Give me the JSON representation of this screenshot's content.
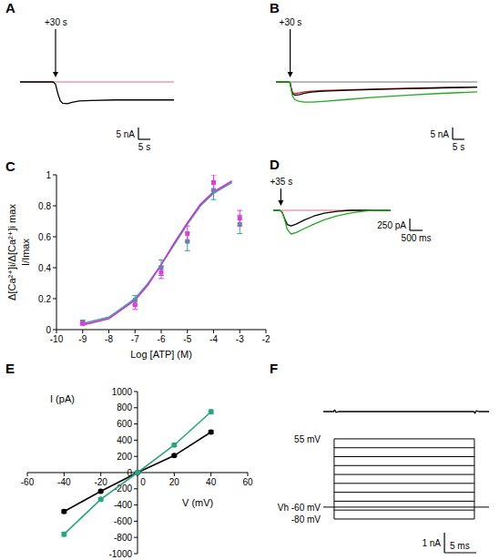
{
  "chart_data": [
    {
      "type": "trace",
      "title": "A",
      "series": [
        {
          "color": "#f29aa8",
          "x": [
            0,
            65
          ],
          "values": [
            0,
            0
          ]
        },
        {
          "color": "#000000",
          "x": [
            0,
            14,
            15,
            16,
            17,
            18,
            20,
            22,
            25,
            30,
            40,
            50,
            65
          ],
          "values": [
            0,
            0,
            -1,
            -5,
            -8,
            -9,
            -9.2,
            -8.6,
            -8,
            -7.8,
            -7.6,
            -7.6,
            -7.6
          ]
        }
      ],
      "scale_bar": {
        "x": 5,
        "x_label": "5 s",
        "y": 5,
        "y_label": "5 nA"
      },
      "annotations": [
        {
          "x": 15,
          "text": "+30 s"
        }
      ]
    },
    {
      "type": "trace",
      "title": "B",
      "series": [
        {
          "color": "#a0a0a0",
          "x": [
            0,
            85
          ],
          "values": [
            0,
            0
          ]
        },
        {
          "color": "#e02020",
          "x": [
            0,
            5.5,
            6,
            6.5,
            7,
            8,
            10,
            12,
            15,
            20,
            30,
            40,
            55,
            70,
            85
          ],
          "values": [
            0,
            0,
            -0.5,
            -2.8,
            -4.5,
            -4.9,
            -4.6,
            -4.2,
            -3.9,
            -3.6,
            -3.3,
            -3,
            -2.7,
            -2.4,
            -2.2
          ]
        },
        {
          "color": "#000000",
          "x": [
            0,
            5.5,
            6,
            6.5,
            7,
            8,
            10,
            12,
            15,
            20,
            30,
            40,
            55,
            70,
            85
          ],
          "values": [
            0,
            0,
            -0.5,
            -3,
            -5,
            -5.6,
            -5.3,
            -4.8,
            -4.3,
            -3.9,
            -3.5,
            -3.2,
            -2.8,
            -2.5,
            -2.2
          ]
        },
        {
          "color": "#22aa22",
          "x": [
            0,
            5.5,
            6,
            6.5,
            7,
            8,
            10,
            12,
            15,
            20,
            30,
            40,
            55,
            70,
            85
          ],
          "values": [
            0,
            0,
            -0.5,
            -3.5,
            -6,
            -7.5,
            -8.2,
            -8.5,
            -8.5,
            -8.2,
            -7.4,
            -6.6,
            -5.6,
            -4.8,
            -4.2
          ]
        }
      ],
      "scale_bar": {
        "x": 5,
        "x_label": "5 s",
        "y": 5,
        "y_label": "5 nA"
      },
      "annotations": [
        {
          "x": 6,
          "text": "+30 s"
        }
      ]
    },
    {
      "type": "scatter",
      "title": "C",
      "x_label": "Log [ATP] (M)",
      "y_label": [
        "Δ[Ca²⁺]i/Δ[Ca²⁺]i max",
        "I/Imax"
      ],
      "xlim": [
        -10,
        -2
      ],
      "xticks": [
        -10,
        -9,
        -8,
        -7,
        -6,
        -5,
        -4,
        -3,
        -2
      ],
      "ylim": [
        0,
        1
      ],
      "yticks": [
        0,
        0.2,
        0.4,
        0.6,
        0.8,
        1
      ],
      "series": [
        {
          "type": "line",
          "color": "#40a8a0",
          "line_style": "solid",
          "x": [
            -9,
            -8,
            -7,
            -6.5,
            -6,
            -5.5,
            -5,
            -4.5,
            -4,
            -3.5,
            -3.3
          ],
          "values": [
            0.04,
            0.08,
            0.2,
            0.3,
            0.42,
            0.55,
            0.68,
            0.8,
            0.88,
            0.93,
            0.95
          ]
        },
        {
          "type": "line",
          "color": "#cc33cc",
          "line_style": "solid",
          "x": [
            -9,
            -8,
            -7,
            -6.5,
            -6,
            -5.5,
            -5,
            -4.5,
            -4,
            -3.5,
            -3.3
          ],
          "values": [
            0.03,
            0.07,
            0.19,
            0.29,
            0.42,
            0.56,
            0.69,
            0.81,
            0.89,
            0.94,
            0.96
          ]
        },
        {
          "type": "scatter",
          "color": "#3d9e9a",
          "marker": "square",
          "x": [
            -9,
            -7,
            -6,
            -5,
            -4,
            -3
          ],
          "values": [
            0.05,
            0.19,
            0.4,
            0.57,
            0.9,
            0.68
          ],
          "errors": [
            0.01,
            0.03,
            0.05,
            0.06,
            0.06,
            0.06
          ]
        },
        {
          "type": "scatter",
          "color": "#e03ce0",
          "marker": "square",
          "x": [
            -9,
            -7,
            -6,
            -5,
            -4,
            -3
          ],
          "values": [
            0.04,
            0.16,
            0.37,
            0.62,
            0.95,
            0.72
          ],
          "errors": [
            0.01,
            0.03,
            0.04,
            0.05,
            0.05,
            0.05
          ]
        }
      ]
    },
    {
      "type": "trace",
      "title": "D",
      "series": [
        {
          "color": "#f29aa8",
          "x": [
            0,
            4.6
          ],
          "values": [
            0,
            0
          ]
        },
        {
          "color": "#000000",
          "x": [
            0,
            0.25,
            0.35,
            0.45,
            0.55,
            0.7,
            0.9,
            1.2,
            1.6,
            2.0,
            2.5,
            3.0,
            3.5,
            3.9,
            4.6
          ],
          "values": [
            0,
            0,
            -40,
            -180,
            -300,
            -330,
            -290,
            -210,
            -120,
            -60,
            -20,
            0,
            0,
            0,
            0
          ]
        },
        {
          "color": "#22aa22",
          "x": [
            0,
            0.25,
            0.35,
            0.45,
            0.55,
            0.7,
            0.9,
            1.2,
            1.6,
            2.0,
            2.5,
            3.0,
            3.5,
            3.9,
            4.6
          ],
          "values": [
            0,
            0,
            -40,
            -200,
            -400,
            -500,
            -470,
            -390,
            -290,
            -200,
            -120,
            -60,
            -20,
            0,
            0
          ]
        }
      ],
      "scale_bar": {
        "x": 0.5,
        "x_label": "500 ms",
        "y": 250,
        "y_label": "250 pA"
      },
      "annotations": [
        {
          "x": 0.3,
          "text": "+35 s"
        }
      ]
    },
    {
      "type": "line",
      "title": "E",
      "x_label": "V (mV)",
      "y_label": "I (pA)",
      "xlim": [
        -60,
        60
      ],
      "xticks": [
        -60,
        -40,
        -20,
        0,
        20,
        40,
        60
      ],
      "ylim": [
        -1000,
        1000
      ],
      "yticks": [
        -1000,
        -800,
        -600,
        -400,
        -200,
        0,
        200,
        400,
        600,
        800,
        1000
      ],
      "series": [
        {
          "color": "#000000",
          "marker": "circle",
          "line_style": "solid",
          "x": [
            -40,
            -20,
            0,
            20,
            40
          ],
          "values": [
            -480,
            -230,
            0,
            210,
            500
          ],
          "errors": [
            20,
            15,
            0,
            15,
            20
          ]
        },
        {
          "color": "#2aa37f",
          "marker": "circle",
          "line_style": "solid",
          "x": [
            -40,
            -20,
            0,
            20,
            40
          ],
          "values": [
            -760,
            -330,
            0,
            340,
            750
          ],
          "errors": [
            25,
            20,
            0,
            20,
            25
          ]
        }
      ]
    },
    {
      "type": "trace",
      "title": "F",
      "series": [
        {
          "color": "#000000",
          "x": [
            0,
            1.6,
            1.8,
            2.0,
            2.4,
            23.6,
            23.8,
            24.0,
            24.4,
            26
          ],
          "values": [
            0,
            0,
            0.08,
            -0.04,
            0,
            0,
            -0.08,
            0.04,
            0,
            0
          ]
        }
      ],
      "scale_bar": {
        "x": 5,
        "x_label": "5 ms",
        "y": 1,
        "y_label": "1 nA"
      },
      "voltage_steps": [
        -80,
        -65,
        -50,
        -35,
        -20,
        -5,
        10,
        25,
        40,
        55
      ],
      "holding_potential": -60,
      "step_time": [
        1.7,
        23.7
      ],
      "annotations": [
        {
          "value": 55,
          "text": "55 mV"
        },
        {
          "value": -60,
          "text": "Vh -60 mV"
        },
        {
          "value": -80,
          "text": "-80 mV"
        }
      ]
    }
  ]
}
